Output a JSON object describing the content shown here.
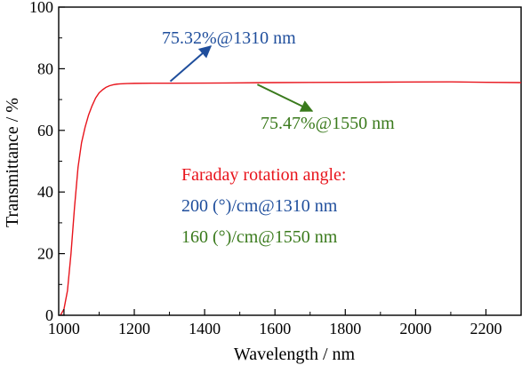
{
  "chart_data": {
    "type": "line",
    "title": "",
    "xlabel": "Wavelength / nm",
    "ylabel": "Transmittance / %",
    "xlim": [
      985,
      2300
    ],
    "ylim": [
      0,
      100
    ],
    "x_ticks": [
      1000,
      1200,
      1400,
      1600,
      1800,
      2000,
      2200
    ],
    "y_ticks": [
      0,
      20,
      40,
      60,
      80,
      100
    ],
    "grid": false,
    "series": [
      {
        "color": "#e8141c",
        "x": [
          990,
          1000,
          1010,
          1020,
          1030,
          1040,
          1050,
          1060,
          1070,
          1080,
          1090,
          1100,
          1110,
          1120,
          1130,
          1140,
          1150,
          1160,
          1180,
          1200,
          1250,
          1310,
          1400,
          1500,
          1550,
          1600,
          1700,
          1800,
          1900,
          2000,
          2100,
          2200,
          2300
        ],
        "y": [
          0,
          2,
          8,
          20,
          35,
          48,
          56,
          61,
          65,
          68,
          70.5,
          72.2,
          73.2,
          74.0,
          74.5,
          74.8,
          75.0,
          75.1,
          75.2,
          75.25,
          75.3,
          75.32,
          75.35,
          75.4,
          75.47,
          75.5,
          75.55,
          75.6,
          75.65,
          75.7,
          75.75,
          75.6,
          75.5
        ]
      }
    ],
    "annotations": [
      {
        "text": "75.32%@1310 nm",
        "color": "#1f4e9c"
      },
      {
        "text": "75.47%@1550 nm",
        "color": "#3a7a1c"
      },
      {
        "text": "Faraday rotation angle:",
        "color": "#e8141c"
      },
      {
        "text": "200 (°)/cm@1310 nm",
        "color": "#1f4e9c"
      },
      {
        "text": "160 (°)/cm@1550 nm",
        "color": "#3a7a1c"
      }
    ]
  }
}
